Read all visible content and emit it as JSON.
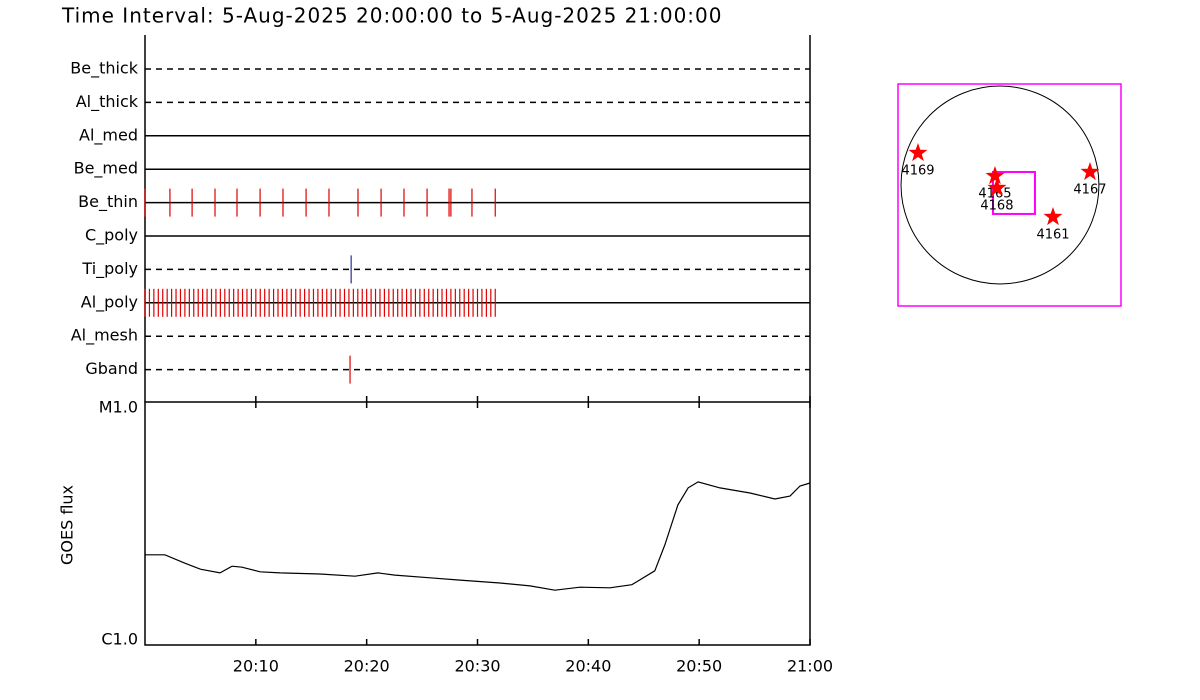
{
  "chart_data": [
    {
      "type": "timeline",
      "title": "Time Interval:  5-Aug-2025 20:00:00 to  5-Aug-2025 21:00:00",
      "xlim": [
        "20:00:00",
        "21:00:00"
      ],
      "categories": [
        "Be_thick",
        "Al_thick",
        "Al_med",
        "Be_med",
        "Be_thin",
        "C_poly",
        "Ti_poly",
        "Al_poly",
        "Al_mesh",
        "Gband"
      ],
      "line_style": [
        "dashed",
        "dashed",
        "solid",
        "solid",
        "solid",
        "solid",
        "dashed",
        "solid",
        "dashed",
        "dashed"
      ],
      "event_colors": [
        "#e00000",
        "#e00000",
        "#e00000",
        "#e00000",
        "#e00000",
        "#e00000",
        "#2a2a9a",
        "#e00000",
        "#e00000",
        "#e00000"
      ],
      "events": [
        [],
        [],
        [],
        [],
        [
          "20:00:00",
          "20:02:15",
          "20:04:15",
          "20:06:19",
          "20:08:18",
          "20:10:23",
          "20:12:27",
          "20:14:32",
          "20:16:36",
          "20:19:13",
          "20:21:18",
          "20:23:22",
          "20:25:27",
          "20:27:26",
          "20:27:36",
          "20:29:30",
          "20:31:36"
        ],
        [],
        [
          "20:18:36"
        ],
        [
          "20:00:00",
          "20:00:24",
          "20:00:48",
          "20:01:12",
          "20:01:36",
          "20:02:00",
          "20:02:24",
          "20:02:48",
          "20:03:12",
          "20:03:36",
          "20:04:00",
          "20:04:24",
          "20:04:48",
          "20:05:12",
          "20:05:36",
          "20:06:00",
          "20:06:24",
          "20:06:48",
          "20:07:12",
          "20:07:36",
          "20:08:00",
          "20:08:24",
          "20:08:48",
          "20:09:12",
          "20:09:36",
          "20:10:00",
          "20:10:24",
          "20:10:48",
          "20:11:12",
          "20:11:36",
          "20:12:00",
          "20:12:24",
          "20:12:48",
          "20:13:12",
          "20:13:36",
          "20:14:00",
          "20:14:24",
          "20:14:48",
          "20:15:12",
          "20:15:36",
          "20:16:00",
          "20:16:24",
          "20:16:48",
          "20:17:12",
          "20:17:36",
          "20:18:00",
          "20:18:24",
          "20:18:48",
          "20:19:12",
          "20:19:36",
          "20:20:00",
          "20:20:24",
          "20:20:48",
          "20:21:12",
          "20:21:36",
          "20:22:00",
          "20:22:24",
          "20:22:48",
          "20:23:12",
          "20:23:36",
          "20:24:00",
          "20:24:24",
          "20:24:48",
          "20:25:12",
          "20:25:36",
          "20:26:00",
          "20:26:24",
          "20:26:48",
          "20:27:12",
          "20:27:36",
          "20:28:00",
          "20:28:24",
          "20:28:48",
          "20:29:12",
          "20:29:36",
          "20:30:00",
          "20:30:24",
          "20:30:48",
          "20:31:12",
          "20:31:36"
        ],
        [],
        [
          "20:18:30"
        ]
      ]
    },
    {
      "type": "line",
      "ylabel": "GOES flux",
      "color": "#000000",
      "log_y": true,
      "xlim": [
        "20:00:00",
        "21:00:00"
      ],
      "xticks": [
        "20:10",
        "20:20",
        "20:30",
        "20:40",
        "20:50",
        "21:00"
      ],
      "ylim": [
        1e-06,
        1e-05
      ],
      "yticks": [
        {
          "value": 1e-06,
          "label": "C1.0"
        },
        {
          "value": 1e-05,
          "label": "M1.0"
        }
      ],
      "x": [
        "20:00:00",
        "20:01:48",
        "20:03:36",
        "20:05:00",
        "20:06:46",
        "20:07:51",
        "20:08:45",
        "20:10:23",
        "20:12:11",
        "20:15:47",
        "20:18:57",
        "20:21:01",
        "20:22:33",
        "20:25:43",
        "20:28:25",
        "20:32:02",
        "20:34:44",
        "20:36:59",
        "20:39:15",
        "20:41:57",
        "20:43:56",
        "20:46:00",
        "20:46:54",
        "20:48:05",
        "20:49:00",
        "20:49:54",
        "20:51:53",
        "20:54:35",
        "20:56:50",
        "20:58:12",
        "20:59:06",
        "21:00:00"
      ],
      "values": [
        2.35e-06,
        2.35e-06,
        2.17e-06,
        2.05e-06,
        1.98e-06,
        2.11e-06,
        2.09e-06,
        2e-06,
        1.98e-06,
        1.96e-06,
        1.92e-06,
        1.98e-06,
        1.94e-06,
        1.89e-06,
        1.85e-06,
        1.8e-06,
        1.75e-06,
        1.68e-06,
        1.73e-06,
        1.72e-06,
        1.77e-06,
        2.02e-06,
        2.58e-06,
        3.77e-06,
        4.43e-06,
        4.69e-06,
        4.43e-06,
        4.22e-06,
        3.99e-06,
        4.1e-06,
        4.51e-06,
        4.64e-06
      ]
    },
    {
      "type": "scatter",
      "color": "#ff00ff",
      "marker_color": "#ff0000",
      "xlim": [
        -979,
        1162
      ],
      "ylim": [
        -1162,
        970
      ],
      "sun_radius": 950,
      "fov": {
        "xlim": [
          -67,
          336
        ],
        "ylim": [
          -278,
          125
        ]
      },
      "labels": [
        "4169",
        "4165",
        "4168",
        "4167",
        "4161"
      ],
      "x": [
        -787,
        -48,
        -29,
        864,
        509
      ],
      "y": [
        307,
        86,
        -29,
        125,
        -307
      ]
    }
  ]
}
